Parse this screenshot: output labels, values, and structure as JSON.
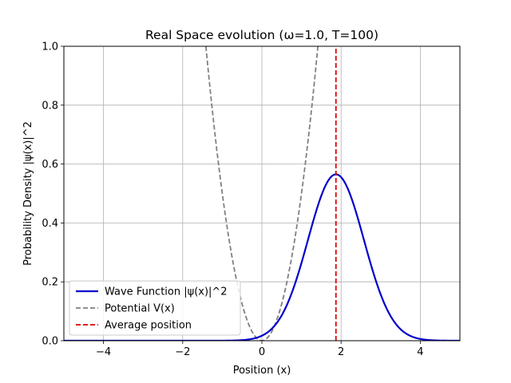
{
  "chart_data": {
    "type": "line",
    "title": "Real Space evolution (ω=1.0, T=100)",
    "xlabel": "Position (x)",
    "ylabel": "Probability Density |ψ(x)|^2",
    "xlim": [
      -5,
      5
    ],
    "ylim": [
      0,
      1.0
    ],
    "xticks": [
      -4,
      -2,
      0,
      2,
      4
    ],
    "xtick_labels": [
      "−4",
      "−2",
      "0",
      "2",
      "4"
    ],
    "yticks": [
      0.0,
      0.2,
      0.4,
      0.6,
      0.8,
      1.0
    ],
    "ytick_labels": [
      "0.0",
      "0.2",
      "0.4",
      "0.6",
      "0.8",
      "1.0"
    ],
    "grid": true,
    "legend_position": "lower-left",
    "series": [
      {
        "name": "Wave Function |ψ(x)|^2",
        "style": "solid",
        "color": "#0000cc",
        "center": 1.87,
        "peak": 0.565,
        "x": [
          -5,
          -1,
          0,
          0.5,
          1,
          1.5,
          1.87,
          2.25,
          2.75,
          3.25,
          3.75,
          4.25,
          5
        ],
        "y": [
          0.0,
          0.0,
          0.002,
          0.03,
          0.187,
          0.497,
          0.565,
          0.499,
          0.204,
          0.041,
          0.004,
          0.0002,
          0.0
        ]
      },
      {
        "name": "Potential V(x)",
        "style": "dashed",
        "color": "#808080",
        "x": [
          -1.414,
          -1,
          -0.5,
          0,
          0.5,
          1,
          1.414
        ],
        "y": [
          1.0,
          0.5,
          0.125,
          0.0,
          0.125,
          0.5,
          1.0
        ]
      },
      {
        "name": "Average position",
        "style": "dashed",
        "color": "#dd0000",
        "x": [
          1.87,
          1.87
        ],
        "y": [
          0,
          1.0
        ]
      }
    ]
  }
}
